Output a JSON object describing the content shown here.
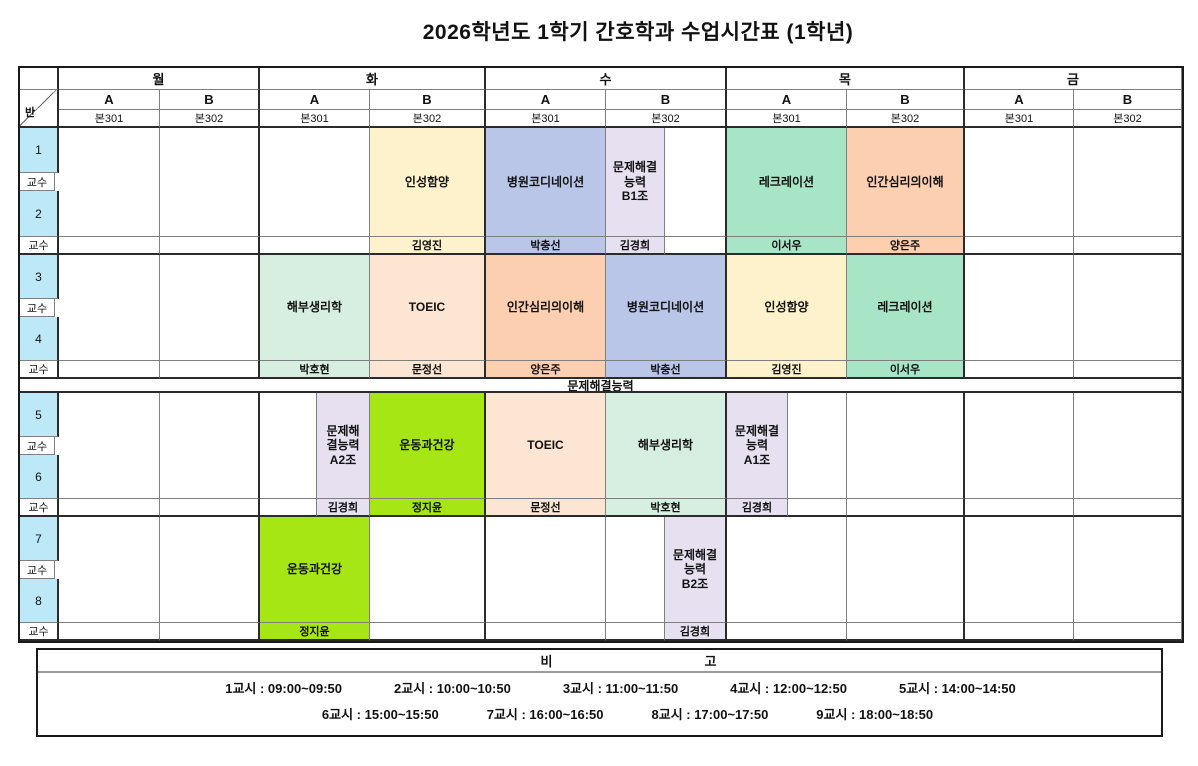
{
  "title": "2026학년도 1학기 간호학과 수업시간표 (1학년)",
  "corner_label": "반",
  "professor_row_label": "교수",
  "banner": "문제해결능력",
  "colors": {
    "header_blue": "#BDE8F7",
    "banner_yellow": "#EAEC00",
    "yellow": "#FDF2CC",
    "blue": "#B9C6E8",
    "lavender": "#E6E0F0",
    "mint": "#A8E4C6",
    "peach": "#FBCFB0",
    "light_mint": "#D7EFE1",
    "light_peach": "#FCE5D3",
    "lime": "#A5E614"
  },
  "days": [
    {
      "name": "월",
      "sections": [
        {
          "label": "A",
          "room": "본301"
        },
        {
          "label": "B",
          "room": "본302"
        }
      ]
    },
    {
      "name": "화",
      "sections": [
        {
          "label": "A",
          "room": "본301"
        },
        {
          "label": "B",
          "room": "본302"
        }
      ]
    },
    {
      "name": "수",
      "sections": [
        {
          "label": "A",
          "room": "본301"
        },
        {
          "label": "B",
          "room": "본302"
        }
      ]
    },
    {
      "name": "목",
      "sections": [
        {
          "label": "A",
          "room": "본301"
        },
        {
          "label": "B",
          "room": "본302"
        }
      ]
    },
    {
      "name": "금",
      "sections": [
        {
          "label": "A",
          "room": "본301"
        },
        {
          "label": "B",
          "room": "본302"
        }
      ]
    }
  ],
  "blocks": [
    {
      "periods": [
        "1",
        "2"
      ],
      "classes": [
        {
          "day": "화",
          "section": "B",
          "half": "full",
          "subject": "인성함양",
          "professor": "김영진",
          "color": "yellow"
        },
        {
          "day": "수",
          "section": "A",
          "half": "full",
          "subject": "병원코디네이션",
          "professor": "박충선",
          "color": "blue"
        },
        {
          "day": "수",
          "section": "B",
          "half": "left",
          "subject": "문제해결\n능력\nB1조",
          "professor": "김경희",
          "color": "lavender"
        },
        {
          "day": "목",
          "section": "A",
          "half": "full",
          "subject": "레크레이션",
          "professor": "이서우",
          "color": "mint"
        },
        {
          "day": "목",
          "section": "B",
          "half": "full",
          "subject": "인간심리의이해",
          "professor": "양은주",
          "color": "peach"
        }
      ]
    },
    {
      "periods": [
        "3",
        "4"
      ],
      "classes": [
        {
          "day": "화",
          "section": "A",
          "half": "full",
          "subject": "해부생리학",
          "professor": "박호현",
          "color": "light_mint"
        },
        {
          "day": "화",
          "section": "B",
          "half": "full",
          "subject": "TOEIC",
          "professor": "문정선",
          "color": "light_peach"
        },
        {
          "day": "수",
          "section": "A",
          "half": "full",
          "subject": "인간심리의이해",
          "professor": "양은주",
          "color": "peach"
        },
        {
          "day": "수",
          "section": "B",
          "half": "full",
          "subject": "병원코디네이션",
          "professor": "박충선",
          "color": "blue"
        },
        {
          "day": "목",
          "section": "A",
          "half": "full",
          "subject": "인성함양",
          "professor": "김영진",
          "color": "yellow"
        },
        {
          "day": "목",
          "section": "B",
          "half": "full",
          "subject": "레크레이션",
          "professor": "이서우",
          "color": "mint"
        }
      ]
    },
    {
      "periods": [
        "5",
        "6"
      ],
      "classes": [
        {
          "day": "화",
          "section": "A",
          "half": "right",
          "subject": "문제해\n결능력\nA2조",
          "professor": "김경희",
          "color": "lavender"
        },
        {
          "day": "화",
          "section": "B",
          "half": "full",
          "subject": "운동과건강",
          "professor": "정지윤",
          "color": "lime"
        },
        {
          "day": "수",
          "section": "A",
          "half": "full",
          "subject": "TOEIC",
          "professor": "문정선",
          "color": "light_peach"
        },
        {
          "day": "수",
          "section": "B",
          "half": "full",
          "subject": "해부생리학",
          "professor": "박호현",
          "color": "light_mint"
        },
        {
          "day": "목",
          "section": "A",
          "half": "left",
          "subject": "문제해결\n능력\nA1조",
          "professor": "김경희",
          "color": "lavender"
        }
      ]
    },
    {
      "periods": [
        "7",
        "8"
      ],
      "classes": [
        {
          "day": "화",
          "section": "A",
          "half": "full",
          "subject": "운동과건강",
          "professor": "정지윤",
          "color": "lime"
        },
        {
          "day": "수",
          "section": "B",
          "half": "right",
          "subject": "문제해결\n능력\nB2조",
          "professor": "김경희",
          "color": "lavender"
        }
      ]
    }
  ],
  "remarks": {
    "title": [
      "비",
      "고"
    ],
    "rows": [
      [
        "1교시 : 09:00~09:50",
        "2교시 : 10:00~10:50",
        "3교시 : 11:00~11:50",
        "4교시 : 12:00~12:50",
        "5교시 : 14:00~14:50"
      ],
      [
        "6교시 : 15:00~15:50",
        "7교시 : 16:00~16:50",
        "8교시 : 17:00~17:50",
        "9교시 : 18:00~18:50"
      ]
    ]
  }
}
